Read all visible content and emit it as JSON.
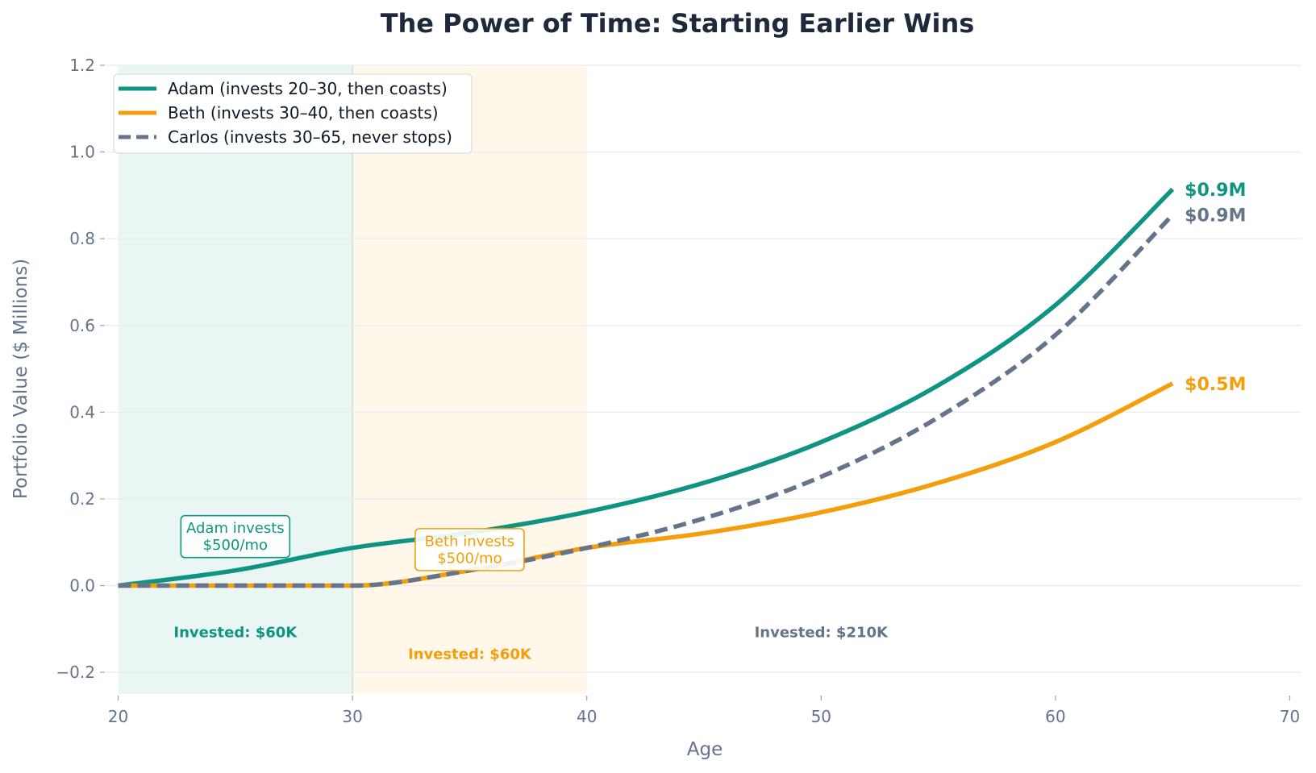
{
  "chart_data": {
    "type": "line",
    "title": "The Power of Time: Starting Earlier Wins",
    "xlabel": "Age",
    "ylabel": "Portfolio Value ($ Millions)",
    "xlim": [
      19.5,
      70.5
    ],
    "ylim": [
      -0.25,
      1.2
    ],
    "x_ticks": [
      "20",
      "30",
      "40",
      "50",
      "60",
      "70"
    ],
    "y_ticks": [
      "−0.2",
      "0.0",
      "0.2",
      "0.4",
      "0.6",
      "0.8",
      "1.0",
      "1.2"
    ],
    "grid": "horizontal",
    "legend_placement": "top-left",
    "shaded_periods": [
      {
        "x_start": 20,
        "x_end": 30,
        "color": "#0f9484"
      },
      {
        "x_start": 30,
        "x_end": 40,
        "color": "#f59e0b"
      }
    ],
    "x": [
      20,
      25,
      30,
      35,
      40,
      45,
      50,
      55,
      60,
      65
    ],
    "series": [
      {
        "name": "Adam (invests 20–30, then coasts)",
        "color": "#0f9484",
        "style": "solid",
        "values": [
          0.0,
          0.035,
          0.087,
          0.122,
          0.17,
          0.237,
          0.331,
          0.462,
          0.647,
          0.914
        ],
        "end_label": "$0.9M"
      },
      {
        "name": "Beth (invests 30–40, then coasts)",
        "color": "#f59e0b",
        "style": "solid",
        "values": [
          0.0,
          0.0,
          0.0,
          0.035,
          0.087,
          0.121,
          0.169,
          0.237,
          0.331,
          0.466
        ],
        "end_label": "$0.5M"
      },
      {
        "name": "Carlos (invests 30–65, never stops)",
        "color": "#64748b",
        "style": "dashed",
        "values": [
          0.0,
          0.0,
          0.0,
          0.035,
          0.087,
          0.155,
          0.251,
          0.388,
          0.578,
          0.855
        ],
        "end_label": "$0.9M"
      }
    ],
    "annotations": [
      {
        "text": [
          "Adam invests",
          "$500/mo"
        ],
        "x": 25,
        "y": 0.113,
        "color": "#0f9484",
        "boxed": true
      },
      {
        "text": [
          "Beth invests",
          "$500/mo"
        ],
        "x": 35,
        "y": 0.083,
        "color": "#f59e0b",
        "boxed": true
      },
      {
        "text": [
          "Invested: $60K"
        ],
        "x": 25,
        "y": -0.108,
        "color": "#0f9484",
        "boxed": false
      },
      {
        "text": [
          "Invested: $60K"
        ],
        "x": 35,
        "y": -0.158,
        "color": "#f59e0b",
        "boxed": false
      },
      {
        "text": [
          "Invested: $210K"
        ],
        "x": 50,
        "y": -0.108,
        "color": "#64748b",
        "boxed": false
      }
    ]
  }
}
